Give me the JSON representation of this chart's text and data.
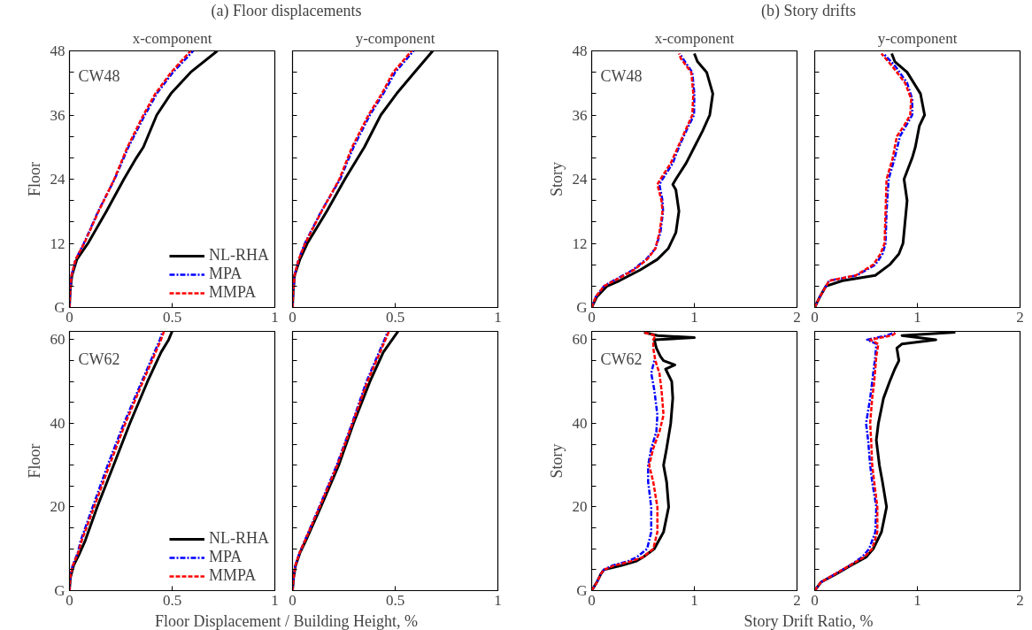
{
  "chart_data": [
    {
      "type": "line",
      "title": "(a) Floor displacements",
      "subtitle": "x-component",
      "ylabel": "Floor",
      "annotations": [
        "CW48"
      ],
      "legend": "bottom right",
      "grid": false,
      "xlim": [
        0,
        1
      ],
      "xticks": [
        0,
        0.5,
        1
      ],
      "ylim": [
        0,
        48
      ],
      "yticks": [
        {
          "value": 0,
          "label": "G"
        },
        {
          "value": 4,
          "label": null
        },
        {
          "value": 8,
          "label": null
        },
        12,
        {
          "value": 16,
          "label": null
        },
        {
          "value": 20,
          "label": null
        },
        24,
        {
          "value": 28,
          "label": null
        },
        {
          "value": 32,
          "label": null
        },
        36,
        {
          "value": 40,
          "label": null
        },
        {
          "value": 44,
          "label": null
        },
        48
      ],
      "series": [
        {
          "name": "NL-RHA",
          "color": "#000000",
          "line_style": "solid",
          "x": [
            0,
            0.003,
            0.012,
            0.036,
            0.09,
            0.135,
            0.18,
            0.265,
            0.326,
            0.36,
            0.425,
            0.494,
            0.59,
            0.72
          ],
          "values": [
            0,
            3,
            6,
            9,
            12,
            15,
            18,
            24,
            28,
            30,
            36,
            40,
            44,
            48
          ]
        },
        {
          "name": "MPA",
          "color": "#0000ff",
          "line_style": "dashdot",
          "x": [
            0,
            0.003,
            0.01,
            0.03,
            0.07,
            0.14,
            0.22,
            0.287,
            0.367,
            0.425,
            0.504,
            0.603
          ],
          "values": [
            0,
            3,
            6,
            9,
            12,
            18,
            24,
            30,
            36,
            40,
            44,
            48
          ]
        },
        {
          "name": "MMPA",
          "color": "#ff0000",
          "line_style": "dashed",
          "x": [
            0,
            0.003,
            0.01,
            0.03,
            0.072,
            0.142,
            0.218,
            0.282,
            0.36,
            0.418,
            0.495,
            0.59
          ],
          "values": [
            0,
            3,
            6,
            9,
            12,
            18,
            24,
            30,
            36,
            40,
            44,
            48
          ]
        }
      ]
    },
    {
      "type": "line",
      "subtitle": "y-component",
      "tick_labels": "x",
      "grid": false,
      "xlim": [
        0,
        1
      ],
      "xticks": [
        0,
        0.5,
        1
      ],
      "ylim": [
        0,
        48
      ],
      "yticks": [
        0,
        {
          "value": 4,
          "label": null
        },
        {
          "value": 8,
          "label": null
        },
        12,
        {
          "value": 16,
          "label": null
        },
        {
          "value": 20,
          "label": null
        },
        24,
        {
          "value": 28,
          "label": null
        },
        {
          "value": 32,
          "label": null
        },
        36,
        {
          "value": 40,
          "label": null
        },
        {
          "value": 44,
          "label": null
        },
        48
      ],
      "series": [
        {
          "color": "#000000",
          "line_style": "solid",
          "x": [
            0,
            0.003,
            0.01,
            0.036,
            0.072,
            0.167,
            0.255,
            0.35,
            0.43,
            0.507,
            0.594,
            0.683
          ],
          "values": [
            0,
            3,
            6,
            9,
            12,
            18,
            24,
            30,
            36,
            40,
            44,
            48
          ]
        },
        {
          "color": "#0000ff",
          "line_style": "dashdot",
          "x": [
            0,
            0.003,
            0.01,
            0.03,
            0.06,
            0.14,
            0.232,
            0.297,
            0.377,
            0.442,
            0.5,
            0.59
          ],
          "values": [
            0,
            3,
            6,
            9,
            12,
            18,
            24,
            30,
            36,
            40,
            44,
            48
          ]
        },
        {
          "color": "#ff0000",
          "line_style": "dashed",
          "x": [
            0,
            0.003,
            0.01,
            0.03,
            0.062,
            0.142,
            0.228,
            0.29,
            0.37,
            0.435,
            0.49,
            0.58
          ],
          "values": [
            0,
            3,
            6,
            9,
            12,
            18,
            24,
            30,
            36,
            40,
            44,
            48
          ]
        }
      ]
    },
    {
      "type": "line",
      "title": "(b) Story drifts",
      "subtitle": "x-component",
      "ylabel": "Story",
      "annotations": [
        "CW48"
      ],
      "grid": false,
      "xlim": [
        0,
        2
      ],
      "xticks": [
        0,
        1,
        2
      ],
      "ylim": [
        0,
        48
      ],
      "yticks": [
        {
          "value": 0,
          "label": "G"
        },
        {
          "value": 4,
          "label": null
        },
        {
          "value": 8,
          "label": null
        },
        12,
        {
          "value": 16,
          "label": null
        },
        {
          "value": 20,
          "label": null
        },
        24,
        {
          "value": 28,
          "label": null
        },
        {
          "value": 32,
          "label": null
        },
        36,
        {
          "value": 40,
          "label": null
        },
        {
          "value": 44,
          "label": null
        },
        48
      ],
      "series": [
        {
          "color": "#000000",
          "line_style": "solid",
          "x": [
            0,
            0.05,
            0.15,
            0.27,
            0.47,
            0.64,
            0.745,
            0.82,
            0.85,
            0.82,
            0.79,
            0.82,
            0.92,
            1.0,
            1.08,
            1.15,
            1.18,
            1.12,
            1.03,
            1.0
          ],
          "values": [
            0,
            2,
            4,
            5,
            7,
            9,
            11,
            14,
            18,
            22,
            23,
            24,
            27,
            30,
            33,
            36,
            40,
            44,
            46,
            47.5
          ]
        },
        {
          "color": "#0000ff",
          "line_style": "dashdot",
          "x": [
            0,
            0.04,
            0.12,
            0.21,
            0.4,
            0.53,
            0.62,
            0.67,
            0.695,
            0.69,
            0.66,
            0.69,
            0.79,
            0.85,
            0.92,
            0.997,
            1.0,
            0.98,
            0.89,
            0.86
          ],
          "values": [
            0,
            2,
            4,
            5,
            7,
            9,
            11,
            14,
            18,
            20,
            23,
            24,
            27,
            30,
            33,
            36,
            40,
            44,
            46.5,
            47.5
          ]
        },
        {
          "color": "#ff0000",
          "line_style": "dashed",
          "x": [
            0,
            0.04,
            0.12,
            0.22,
            0.41,
            0.54,
            0.62,
            0.66,
            0.69,
            0.68,
            0.64,
            0.67,
            0.77,
            0.84,
            0.91,
            0.98,
            0.99,
            0.97,
            0.87,
            0.85
          ],
          "values": [
            0,
            2,
            4,
            5,
            7,
            9,
            11,
            14,
            18,
            20,
            23,
            24,
            27,
            30,
            33,
            36,
            40,
            44,
            46.5,
            47.5
          ]
        }
      ]
    },
    {
      "type": "line",
      "subtitle": "y-component",
      "tick_labels": "x",
      "grid": false,
      "xlim": [
        0,
        2
      ],
      "xticks": [
        0,
        1,
        2
      ],
      "ylim": [
        0,
        48
      ],
      "yticks": [
        0,
        {
          "value": 4,
          "label": null
        },
        {
          "value": 8,
          "label": null
        },
        12,
        {
          "value": 16,
          "label": null
        },
        {
          "value": 20,
          "label": null
        },
        24,
        {
          "value": 28,
          "label": null
        },
        {
          "value": 32,
          "label": null
        },
        36,
        {
          "value": 40,
          "label": null
        },
        {
          "value": 44,
          "label": null
        },
        48
      ],
      "series": [
        {
          "color": "#000000",
          "line_style": "solid",
          "x": [
            0,
            0.05,
            0.11,
            0.27,
            0.59,
            0.73,
            0.82,
            0.86,
            0.88,
            0.9,
            0.87,
            0.95,
            0.98,
            1.02,
            1.07,
            1.03,
            0.9,
            0.78,
            0.75
          ],
          "values": [
            0,
            2,
            4,
            5,
            6,
            8,
            10,
            12,
            16,
            20,
            24,
            28,
            30,
            34,
            36,
            40,
            44,
            46,
            47.5
          ]
        },
        {
          "color": "#0000ff",
          "line_style": "dashdot",
          "x": [
            0,
            0.05,
            0.11,
            0.14,
            0.41,
            0.59,
            0.66,
            0.69,
            0.7,
            0.72,
            0.78,
            0.83,
            0.89,
            0.95,
            0.95,
            0.9,
            0.79,
            0.67
          ],
          "values": [
            0,
            2,
            4,
            5,
            6,
            8,
            10,
            12,
            18,
            24,
            28,
            32,
            34,
            36,
            39,
            42,
            45,
            47.5
          ]
        },
        {
          "color": "#ff0000",
          "line_style": "dashed",
          "x": [
            0,
            0.05,
            0.11,
            0.14,
            0.4,
            0.57,
            0.64,
            0.68,
            0.69,
            0.7,
            0.76,
            0.8,
            0.87,
            0.93,
            0.94,
            0.88,
            0.76,
            0.65
          ],
          "values": [
            0,
            2,
            4,
            5,
            6,
            8,
            10,
            12,
            18,
            24,
            28,
            32,
            34,
            36,
            39,
            42,
            45,
            47.5
          ]
        }
      ]
    },
    {
      "type": "line",
      "ylabel": "Floor",
      "xlabel": "Floor Displacement / Building Height, %",
      "annotations": [
        "CW62"
      ],
      "legend": "bottom right",
      "grid": false,
      "xlim": [
        0,
        1
      ],
      "xticks": [
        0,
        0.5,
        1
      ],
      "ylim": [
        0,
        62
      ],
      "yticks": [
        {
          "value": 0,
          "label": "G"
        },
        {
          "value": 5,
          "label": null
        },
        {
          "value": 10,
          "label": null
        },
        {
          "value": 15,
          "label": null
        },
        20,
        {
          "value": 25,
          "label": null
        },
        {
          "value": 30,
          "label": null
        },
        {
          "value": 35,
          "label": null
        },
        40,
        {
          "value": 45,
          "label": null
        },
        {
          "value": 50,
          "label": null
        },
        {
          "value": 55,
          "label": null
        },
        60
      ],
      "series": [
        {
          "name": "NL-RHA",
          "color": "#000000",
          "line_style": "solid",
          "x": [
            0,
            0.004,
            0.02,
            0.05,
            0.077,
            0.135,
            0.215,
            0.294,
            0.38,
            0.446,
            0.483,
            0.5
          ],
          "values": [
            0,
            3,
            6,
            9,
            12,
            20,
            30,
            40,
            50,
            57,
            60,
            62
          ]
        },
        {
          "name": "MPA",
          "color": "#0000ff",
          "line_style": "dashdot",
          "x": [
            0,
            0.003,
            0.015,
            0.04,
            0.055,
            0.113,
            0.186,
            0.265,
            0.352,
            0.44,
            0.454
          ],
          "values": [
            0,
            3,
            6,
            9,
            12,
            20,
            30,
            40,
            50,
            60,
            62
          ]
        },
        {
          "name": "MMPA",
          "color": "#ff0000",
          "line_style": "dashed",
          "x": [
            0,
            0.003,
            0.016,
            0.042,
            0.06,
            0.12,
            0.195,
            0.272,
            0.358,
            0.446,
            0.46
          ],
          "values": [
            0,
            3,
            6,
            9,
            12,
            20,
            30,
            40,
            50,
            60,
            62
          ]
        }
      ]
    },
    {
      "type": "line",
      "tick_labels": "x",
      "grid": false,
      "xlim": [
        0,
        1
      ],
      "xticks": [
        0,
        0.5,
        1
      ],
      "ylim": [
        0,
        62
      ],
      "yticks": [
        0,
        {
          "value": 5,
          "label": null
        },
        {
          "value": 10,
          "label": null
        },
        {
          "value": 15,
          "label": null
        },
        20,
        {
          "value": 25,
          "label": null
        },
        {
          "value": 30,
          "label": null
        },
        {
          "value": 35,
          "label": null
        },
        40,
        {
          "value": 45,
          "label": null
        },
        {
          "value": 50,
          "label": null
        },
        {
          "value": 55,
          "label": null
        },
        60
      ],
      "series": [
        {
          "color": "#000000",
          "line_style": "solid",
          "x": [
            0,
            0.005,
            0.015,
            0.036,
            0.065,
            0.138,
            0.225,
            0.297,
            0.377,
            0.442,
            0.514
          ],
          "values": [
            0,
            3,
            6,
            9,
            12,
            20,
            30,
            40,
            50,
            57,
            62
          ]
        },
        {
          "color": "#0000ff",
          "line_style": "dashdot",
          "x": [
            0,
            0.005,
            0.014,
            0.034,
            0.06,
            0.13,
            0.215,
            0.29,
            0.36,
            0.465
          ],
          "values": [
            0,
            3,
            6,
            9,
            12,
            20,
            30,
            40,
            50,
            62
          ]
        },
        {
          "color": "#ff0000",
          "line_style": "dashed",
          "x": [
            0,
            0.005,
            0.014,
            0.034,
            0.061,
            0.132,
            0.218,
            0.292,
            0.365,
            0.47
          ],
          "values": [
            0,
            3,
            6,
            9,
            12,
            20,
            30,
            40,
            50,
            62
          ]
        }
      ]
    },
    {
      "type": "line",
      "ylabel": "Story",
      "xlabel": "Story Drift Ratio, %",
      "annotations": [
        "CW62"
      ],
      "grid": false,
      "xlim": [
        0,
        2
      ],
      "xticks": [
        0,
        1,
        2
      ],
      "ylim": [
        0,
        62
      ],
      "yticks": [
        {
          "value": 0,
          "label": "G"
        },
        {
          "value": 5,
          "label": null
        },
        {
          "value": 10,
          "label": null
        },
        {
          "value": 15,
          "label": null
        },
        20,
        {
          "value": 25,
          "label": null
        },
        {
          "value": 30,
          "label": null
        },
        {
          "value": 35,
          "label": null
        },
        40,
        {
          "value": 45,
          "label": null
        },
        {
          "value": 50,
          "label": null
        },
        {
          "value": 55,
          "label": null
        },
        60
      ],
      "series": [
        {
          "color": "#000000",
          "line_style": "solid",
          "x": [
            0,
            0.05,
            0.09,
            0.12,
            0.29,
            0.43,
            0.5,
            0.61,
            0.7,
            0.75,
            0.73,
            0.7,
            0.73,
            0.77,
            0.79,
            0.78,
            0.74,
            0.72,
            0.81,
            0.7,
            0.67,
            0.63,
            0.61,
            1.0,
            0.64,
            0.51
          ],
          "values": [
            0,
            2,
            4,
            5,
            6,
            7,
            8,
            10,
            14,
            20,
            26,
            30,
            34,
            40,
            46,
            50,
            52,
            53,
            54,
            55,
            56,
            58,
            60,
            60.5,
            61,
            61.8
          ]
        },
        {
          "color": "#0000ff",
          "line_style": "dashdot",
          "x": [
            0,
            0.05,
            0.09,
            0.12,
            0.2,
            0.35,
            0.44,
            0.54,
            0.58,
            0.58,
            0.55,
            0.55,
            0.58,
            0.63,
            0.64,
            0.61,
            0.58,
            0.6,
            0.61
          ],
          "values": [
            0,
            2,
            4,
            5,
            6,
            7,
            8,
            10,
            14,
            20,
            26,
            30,
            34,
            38,
            42,
            48,
            52,
            54,
            55
          ]
        },
        {
          "color": "#ff0000",
          "line_style": "dashed",
          "x": [
            0,
            0.05,
            0.09,
            0.12,
            0.22,
            0.38,
            0.5,
            0.6,
            0.64,
            0.64,
            0.6,
            0.56,
            0.6,
            0.66,
            0.7,
            0.68,
            0.66,
            0.62,
            0.6,
            0.6,
            0.62,
            0.5
          ],
          "values": [
            0,
            2,
            4,
            5,
            6,
            7,
            8,
            10,
            14,
            20,
            26,
            30,
            34,
            38,
            42,
            48,
            52,
            55,
            58,
            60,
            61,
            61.8
          ]
        }
      ]
    },
    {
      "type": "line",
      "tick_labels": "x",
      "grid": false,
      "xlim": [
        0,
        2
      ],
      "xticks": [
        0,
        1,
        2
      ],
      "ylim": [
        0,
        62
      ],
      "yticks": [
        0,
        {
          "value": 5,
          "label": null
        },
        {
          "value": 10,
          "label": null
        },
        {
          "value": 15,
          "label": null
        },
        20,
        {
          "value": 25,
          "label": null
        },
        {
          "value": 30,
          "label": null
        },
        {
          "value": 35,
          "label": null
        },
        40,
        {
          "value": 45,
          "label": null
        },
        {
          "value": 50,
          "label": null
        },
        {
          "value": 55,
          "label": null
        },
        60
      ],
      "series": [
        {
          "color": "#000000",
          "line_style": "solid",
          "x": [
            0,
            0.06,
            0.21,
            0.35,
            0.5,
            0.57,
            0.65,
            0.7,
            0.66,
            0.63,
            0.6,
            0.62,
            0.67,
            0.73,
            0.78,
            0.82,
            0.8,
            0.85,
            1.18,
            0.85,
            1.37
          ],
          "values": [
            0,
            2,
            4,
            6,
            8,
            10,
            14,
            20,
            26,
            30,
            36,
            40,
            46,
            50,
            53,
            55,
            58,
            59,
            60,
            61,
            61.8
          ]
        },
        {
          "color": "#0000ff",
          "line_style": "dashdot",
          "x": [
            0,
            0.06,
            0.2,
            0.34,
            0.46,
            0.53,
            0.59,
            0.6,
            0.56,
            0.54,
            0.52,
            0.5,
            0.54,
            0.56,
            0.59,
            0.6,
            0.51,
            0.7,
            0.78
          ],
          "values": [
            0,
            2,
            4,
            6,
            8,
            10,
            14,
            20,
            26,
            30,
            36,
            40,
            46,
            50,
            56,
            59,
            60,
            61,
            61.8
          ]
        },
        {
          "color": "#ff0000",
          "line_style": "dashed",
          "x": [
            0,
            0.06,
            0.2,
            0.34,
            0.48,
            0.56,
            0.61,
            0.61,
            0.58,
            0.56,
            0.55,
            0.54,
            0.56,
            0.58,
            0.6,
            0.62,
            0.54,
            0.75,
            0.8
          ],
          "values": [
            0,
            2,
            4,
            6,
            8,
            10,
            14,
            20,
            26,
            30,
            36,
            40,
            46,
            50,
            56,
            59,
            60,
            61,
            61.8
          ]
        }
      ]
    }
  ]
}
